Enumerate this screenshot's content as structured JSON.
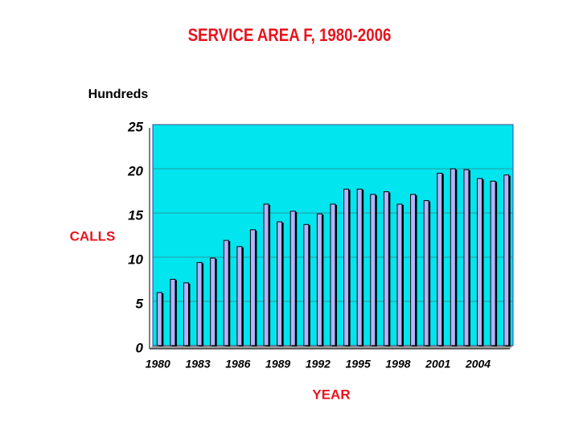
{
  "chart_data": {
    "type": "bar",
    "title": "SERVICE AREA F, 1980-2006",
    "y_unit_label": "Hundreds",
    "ylabel": "CALLS",
    "xlabel": "YEAR",
    "categories": [
      "1980",
      null,
      null,
      "1983",
      null,
      null,
      "1986",
      null,
      null,
      "1989",
      null,
      null,
      "1992",
      null,
      null,
      "1995",
      null,
      null,
      "1998",
      null,
      null,
      "2001",
      null,
      null,
      "2004",
      null,
      null
    ],
    "values": [
      6.0,
      7.5,
      7.1,
      9.4,
      9.9,
      11.9,
      11.2,
      13.1,
      16.0,
      14.0,
      15.2,
      13.7,
      14.9,
      16.0,
      17.7,
      17.7,
      17.1,
      17.4,
      16.0,
      17.1,
      16.4,
      19.5,
      20.0,
      19.9,
      18.9,
      18.6,
      19.3
    ],
    "color": "#b3b3ff",
    "plot_background": "#00e5ee",
    "ylim": [
      0,
      25
    ],
    "yticks": [
      0,
      5,
      10,
      15,
      20,
      25
    ],
    "grid": true
  }
}
